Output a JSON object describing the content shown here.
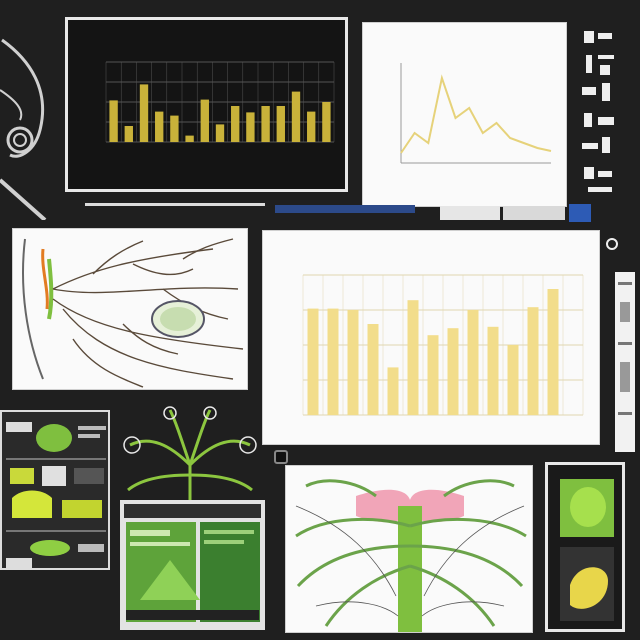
{
  "panels": {
    "dark_bar_chart": {
      "title": "",
      "chart_data": {
        "type": "bar",
        "categories": [
          "",
          "",
          "",
          "",
          "",
          "",
          "",
          "",
          "",
          "",
          "",
          "",
          "",
          "",
          ""
        ],
        "values": [
          52,
          20,
          72,
          38,
          33,
          8,
          53,
          22,
          45,
          37,
          45,
          45,
          63,
          38,
          50
        ],
        "ylim": [
          0,
          100
        ],
        "grid": true,
        "bar_color": "#c9b23a"
      }
    },
    "line_chart": {
      "title": "",
      "chart_data": {
        "type": "line",
        "x": [
          1,
          2,
          3,
          4,
          5,
          6,
          7,
          8,
          9,
          10,
          11,
          12
        ],
        "values": [
          10,
          30,
          20,
          85,
          45,
          55,
          30,
          40,
          25,
          20,
          15,
          12
        ],
        "ylim": [
          0,
          100
        ],
        "line_color": "#e6d27a"
      }
    },
    "main_bar_chart": {
      "title": "",
      "subtitle": "",
      "chart_data": {
        "type": "bar",
        "categories": [
          "",
          "",
          "",
          "",
          "",
          "",
          "",
          "",
          "",
          "",
          "",
          "",
          "",
          ""
        ],
        "values": [
          76,
          76,
          75,
          65,
          34,
          82,
          57,
          62,
          75,
          63,
          50,
          77,
          90,
          0
        ],
        "ylim": [
          0,
          100
        ],
        "grid": true,
        "bar_color": "#f2dd8b"
      }
    }
  },
  "colors": {
    "background": "#1f1f1f",
    "accent_green": "#7fbf3f",
    "accent_yellow": "#e8d64a"
  }
}
